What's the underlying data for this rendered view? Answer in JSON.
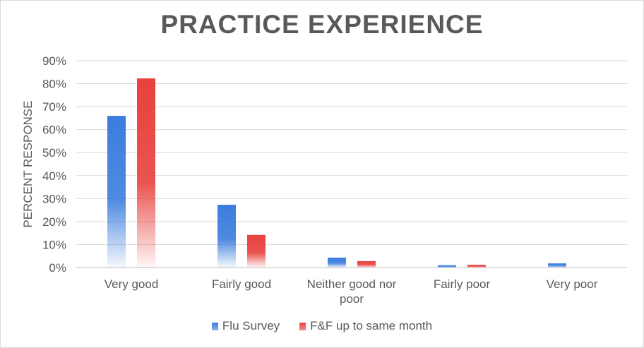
{
  "chart_data": {
    "type": "bar",
    "title": "PRACTICE EXPERIENCE",
    "ylabel": "PERCENT RESPONSE",
    "xlabel": "",
    "ylim": [
      0,
      90
    ],
    "yticks": [
      "0%",
      "10%",
      "20%",
      "30%",
      "40%",
      "50%",
      "60%",
      "70%",
      "80%",
      "90%"
    ],
    "categories": [
      "Very good",
      "Fairly good",
      "Neither good nor poor",
      "Fairly poor",
      "Very poor"
    ],
    "series": [
      {
        "name": "Flu Survey",
        "color": "#3b7ddd",
        "values": [
          66,
          27.3,
          4.3,
          1,
          1.8
        ]
      },
      {
        "name": "F&F up to same month",
        "color": "#e8413d",
        "values": [
          82.3,
          14.2,
          2.8,
          1.2,
          0
        ]
      }
    ],
    "grid": true,
    "legend": "bottom"
  }
}
